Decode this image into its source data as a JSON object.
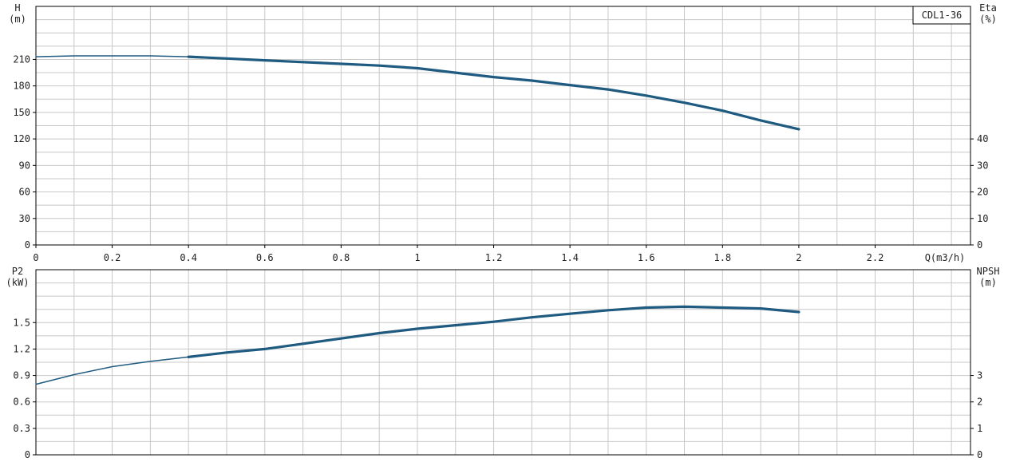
{
  "chart_data": [
    {
      "type": "line",
      "panel": "head",
      "legend": "CDL1-36",
      "ylabel_left": "H",
      "ylabel_left_unit": "(m)",
      "ylabel_right": "Eta",
      "ylabel_right_unit": "(%)",
      "xlabel": "Q(m3/h)",
      "x_ticks": [
        "0",
        "0.2",
        "0.4",
        "0.6",
        "0.8",
        "1",
        "1.2",
        "1.4",
        "1.6",
        "1.8",
        "2",
        "2.2"
      ],
      "xlim": [
        0,
        2.45
      ],
      "y_left_ticks": [
        "0",
        "30",
        "60",
        "90",
        "120",
        "150",
        "180",
        "210"
      ],
      "y_left_lim": [
        0,
        270
      ],
      "y_right_ticks": [
        "0",
        "10",
        "20",
        "30",
        "40"
      ],
      "y_right_lim": [
        0,
        90
      ],
      "grid": true,
      "series": [
        {
          "color": "#1f5a80",
          "x": [
            0,
            0.1,
            0.2,
            0.3,
            0.4,
            0.5,
            0.6,
            0.7,
            0.8,
            0.9,
            1.0,
            1.1,
            1.2,
            1.3,
            1.4,
            1.5,
            1.6,
            1.7,
            1.8,
            1.9,
            2.0
          ],
          "y": [
            213,
            214,
            214,
            214,
            213,
            211,
            209,
            207,
            205,
            203,
            200,
            195,
            190,
            186,
            181,
            176,
            169,
            161,
            152,
            141,
            131
          ]
        }
      ]
    },
    {
      "type": "line",
      "panel": "power",
      "ylabel_left": "P2",
      "ylabel_left_unit": "(kW)",
      "ylabel_right": "NPSH",
      "ylabel_right_unit": "(m)",
      "xlim": [
        0,
        2.45
      ],
      "y_left_ticks": [
        "0",
        "0.3",
        "0.6",
        "0.9",
        "1.2",
        "1.5"
      ],
      "y_left_lim": [
        0,
        2.1
      ],
      "y_right_ticks": [
        "0",
        "1",
        "2",
        "3"
      ],
      "y_right_lim": [
        0,
        7
      ],
      "grid": true,
      "series": [
        {
          "color": "#1f5a80",
          "x": [
            0,
            0.1,
            0.2,
            0.3,
            0.4,
            0.5,
            0.6,
            0.7,
            0.8,
            0.9,
            1.0,
            1.1,
            1.2,
            1.3,
            1.4,
            1.5,
            1.6,
            1.7,
            1.8,
            1.9,
            2.0
          ],
          "y": [
            0.8,
            0.91,
            1.0,
            1.06,
            1.11,
            1.16,
            1.2,
            1.26,
            1.32,
            1.38,
            1.43,
            1.47,
            1.51,
            1.56,
            1.6,
            1.64,
            1.67,
            1.68,
            1.67,
            1.66,
            1.62
          ]
        }
      ]
    }
  ]
}
